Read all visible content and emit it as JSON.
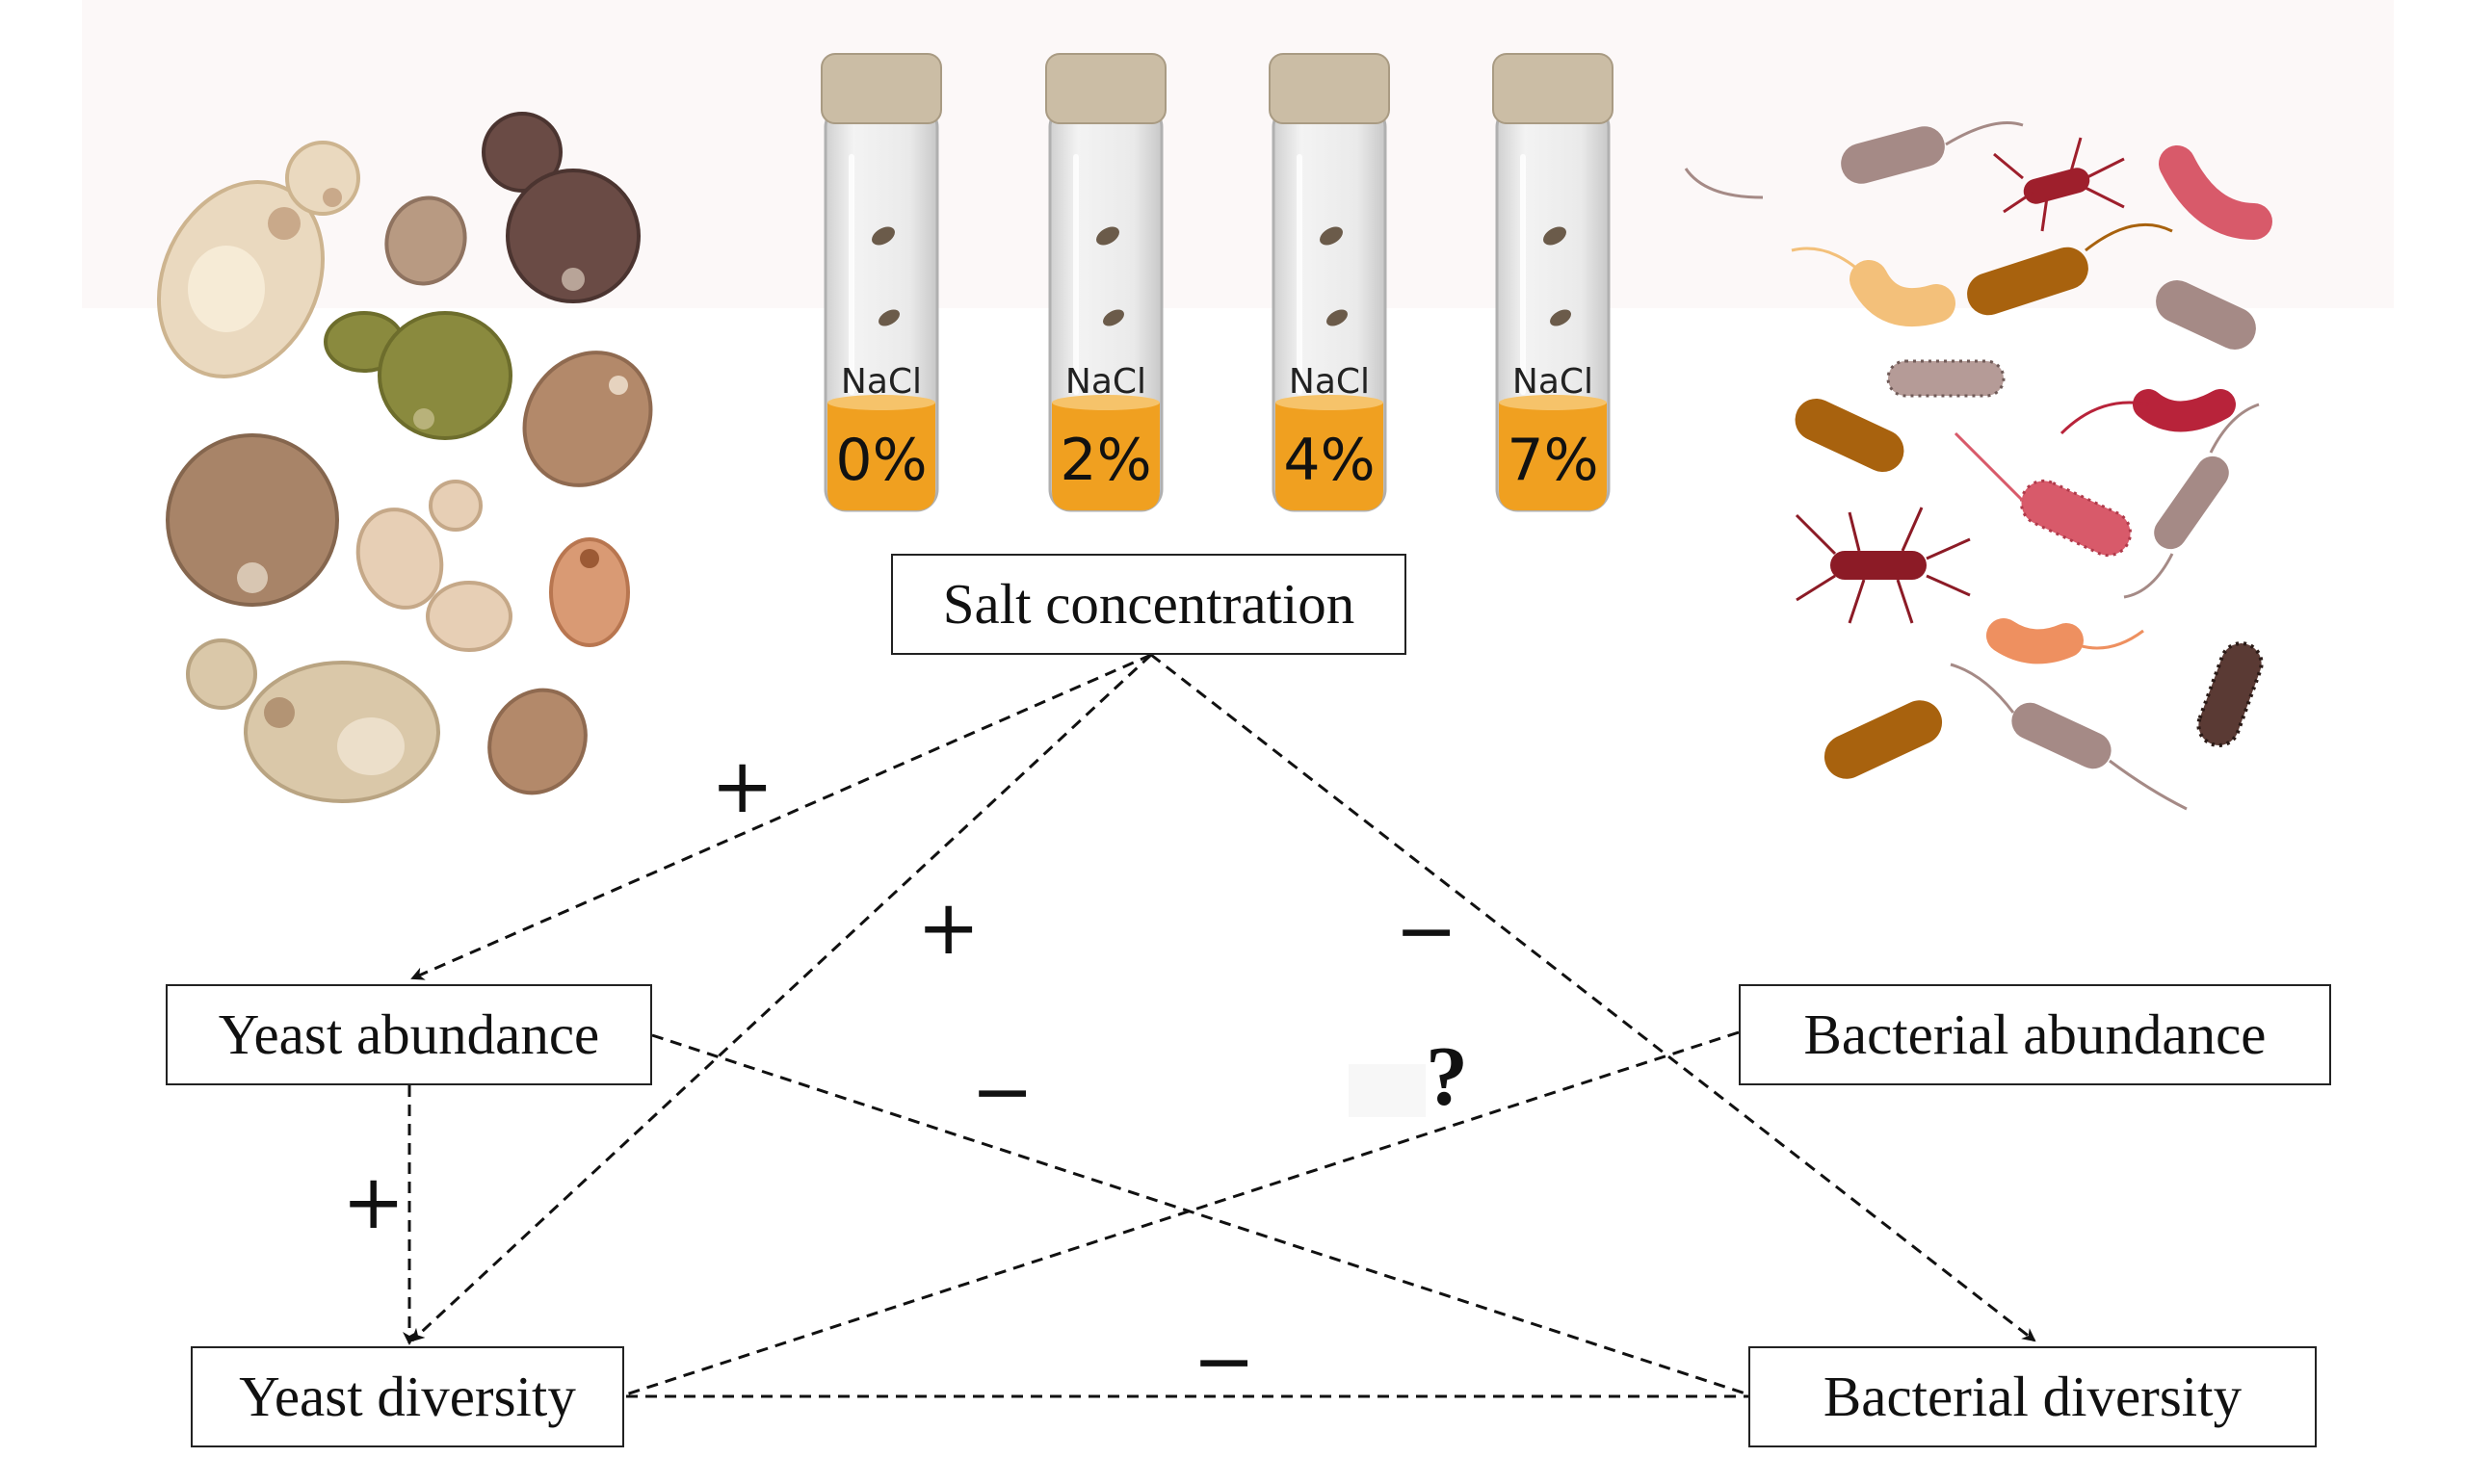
{
  "tubes": [
    {
      "label": "NaCl",
      "pct": "0%"
    },
    {
      "label": "NaCl",
      "pct": "2%"
    },
    {
      "label": "NaCl",
      "pct": "4%"
    },
    {
      "label": "NaCl",
      "pct": "7%"
    }
  ],
  "nodes": {
    "salt": "Salt concentration",
    "yeast_abundance": "Yeast abundance",
    "yeast_diversity": "Yeast diversity",
    "bacterial_abundance": "Bacterial abundance",
    "bacterial_diversity": "Bacterial diversity"
  },
  "relations": {
    "salt_yeast_abundance": "+",
    "salt_yeast_diversity": "+",
    "salt_bacterial_diversity": "−",
    "yeast_abundance_bacterial_diversity": "−",
    "bacterial_abundance_yeast_diversity": "?",
    "yeast_abundance_yeast_diversity": "+",
    "yeast_diversity_bacterial_diversity": "−"
  },
  "colors": {
    "liquid": "#f0a020",
    "tube_glass": "#e4e4e4",
    "cap": "#cbbda5",
    "yeast_palette": [
      "#e7d9c0",
      "#b89a82",
      "#5e4541",
      "#8a8a3e",
      "#b3896a",
      "#d99a74"
    ],
    "bacteria_palette": [
      "#a58a86",
      "#b8233a",
      "#d85a6a",
      "#f3c07a",
      "#a8620e",
      "#5a3a34"
    ]
  }
}
